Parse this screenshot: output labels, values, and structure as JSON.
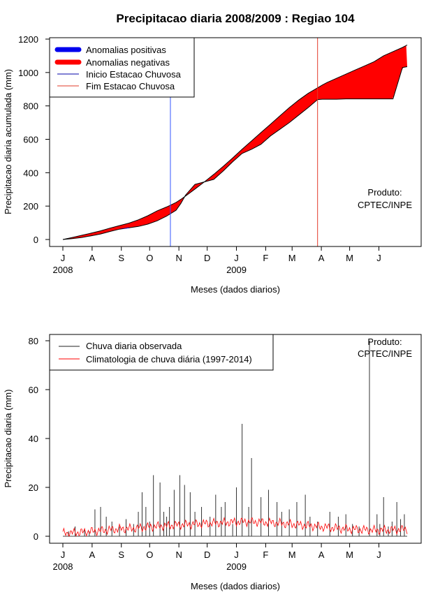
{
  "title": "Precipitacao diaria 2008/2009 : Regiao 104",
  "chart_data": [
    {
      "type": "area",
      "ylabel": "Precipitacao diaria acumulada (mm)",
      "xlabel": "Meses (dados diarios)",
      "ylim": [
        0,
        1200
      ],
      "yticks": [
        "0",
        "200",
        "400",
        "600",
        "800",
        "1000",
        "1200"
      ],
      "month_labels": [
        "J",
        "A",
        "S",
        "O",
        "N",
        "D",
        "J",
        "F",
        "M",
        "A",
        "M",
        "J"
      ],
      "year_labels": [
        "2008",
        "2009"
      ],
      "legend": {
        "position": "top-left",
        "entries": [
          "Anomalias positivas",
          "Anomalias negativas",
          "Inicio Estacao Chuvosa",
          "Fim Estacao Chuvosa"
        ]
      },
      "product_label": [
        "Produto:",
        "CPTEC/INPE"
      ],
      "season_start_day": 114,
      "season_end_day": 270,
      "observed_cumulative": {
        "day": [
          0,
          10,
          20,
          30,
          40,
          50,
          60,
          70,
          80,
          90,
          100,
          110,
          120,
          125,
          130,
          140,
          150,
          160,
          170,
          180,
          190,
          200,
          210,
          220,
          230,
          240,
          250,
          260,
          270,
          275,
          280,
          290,
          300,
          310,
          320,
          330,
          340,
          350,
          360,
          365
        ],
        "values": [
          0,
          5,
          12,
          22,
          33,
          48,
          62,
          70,
          78,
          92,
          112,
          140,
          175,
          215,
          265,
          330,
          345,
          360,
          410,
          465,
          515,
          540,
          570,
          620,
          660,
          700,
          745,
          790,
          838,
          840,
          840,
          840,
          842,
          842,
          842,
          842,
          842,
          842,
          1030,
          1035
        ]
      },
      "climatology_cumulative": {
        "day": [
          0,
          10,
          20,
          30,
          40,
          50,
          60,
          70,
          80,
          90,
          100,
          110,
          120,
          125,
          130,
          140,
          150,
          160,
          170,
          180,
          190,
          200,
          210,
          220,
          230,
          240,
          250,
          260,
          270,
          275,
          280,
          290,
          300,
          310,
          320,
          330,
          340,
          350,
          360,
          365
        ],
        "values": [
          0,
          12,
          25,
          38,
          52,
          68,
          83,
          98,
          118,
          142,
          172,
          195,
          222,
          240,
          260,
          302,
          345,
          390,
          438,
          488,
          540,
          590,
          640,
          690,
          740,
          790,
          835,
          875,
          908,
          925,
          940,
          965,
          990,
          1015,
          1040,
          1065,
          1100,
          1125,
          1150,
          1165
        ]
      }
    },
    {
      "type": "bar",
      "ylabel": "Precipitacao diaria (mm)",
      "xlabel": "Meses (dados diarios)",
      "ylim": [
        0,
        80
      ],
      "yticks": [
        "0",
        "20",
        "40",
        "60",
        "80"
      ],
      "month_labels": [
        "J",
        "A",
        "S",
        "O",
        "N",
        "D",
        "J",
        "F",
        "M",
        "A",
        "M",
        "J"
      ],
      "year_labels": [
        "2008",
        "2009"
      ],
      "legend": {
        "position": "top-left",
        "entries": [
          "Chuva diaria observada",
          "Climatologia de chuva diária (1997-2014)"
        ]
      },
      "product_label": [
        "Produto:",
        "CPTEC/INPE"
      ],
      "observed_peaks": {
        "day": [
          6,
          13,
          23,
          28,
          34,
          40,
          46,
          52,
          60,
          67,
          75,
          80,
          84,
          88,
          92,
          96,
          103,
          107,
          110,
          113,
          118,
          124,
          129,
          135,
          140,
          147,
          156,
          162,
          168,
          172,
          180,
          184,
          190,
          197,
          200,
          210,
          218,
          227,
          232,
          240,
          248,
          257,
          262,
          270,
          283,
          292,
          300,
          307,
          314,
          325,
          333,
          336,
          340,
          345,
          349,
          354,
          358,
          362
        ],
        "values": [
          2,
          4,
          3,
          2,
          11,
          12,
          8,
          6,
          4,
          7,
          5,
          10,
          18,
          12,
          6,
          25,
          22,
          10,
          8,
          12,
          19,
          25,
          21,
          18,
          10,
          12,
          8,
          17,
          12,
          14,
          5,
          20,
          46,
          12,
          32,
          16,
          19,
          14,
          10,
          11,
          14,
          17,
          8,
          6,
          10,
          8,
          9,
          5,
          4,
          80,
          9,
          5,
          16,
          4,
          6,
          14,
          7,
          9
        ]
      },
      "climatology_smoothed": {
        "day": [
          0,
          15,
          30,
          45,
          60,
          75,
          90,
          105,
          120,
          135,
          150,
          165,
          180,
          195,
          210,
          225,
          240,
          255,
          270,
          285,
          300,
          315,
          330,
          345,
          360,
          365
        ],
        "values": [
          1.2,
          1.5,
          2.0,
          2.5,
          3.0,
          3.2,
          3.8,
          4.2,
          4.6,
          4.9,
          5.2,
          5.5,
          5.8,
          6.0,
          5.8,
          5.5,
          5.0,
          4.5,
          4.0,
          3.5,
          3.0,
          2.7,
          2.5,
          2.6,
          2.8,
          2.9
        ]
      }
    }
  ]
}
